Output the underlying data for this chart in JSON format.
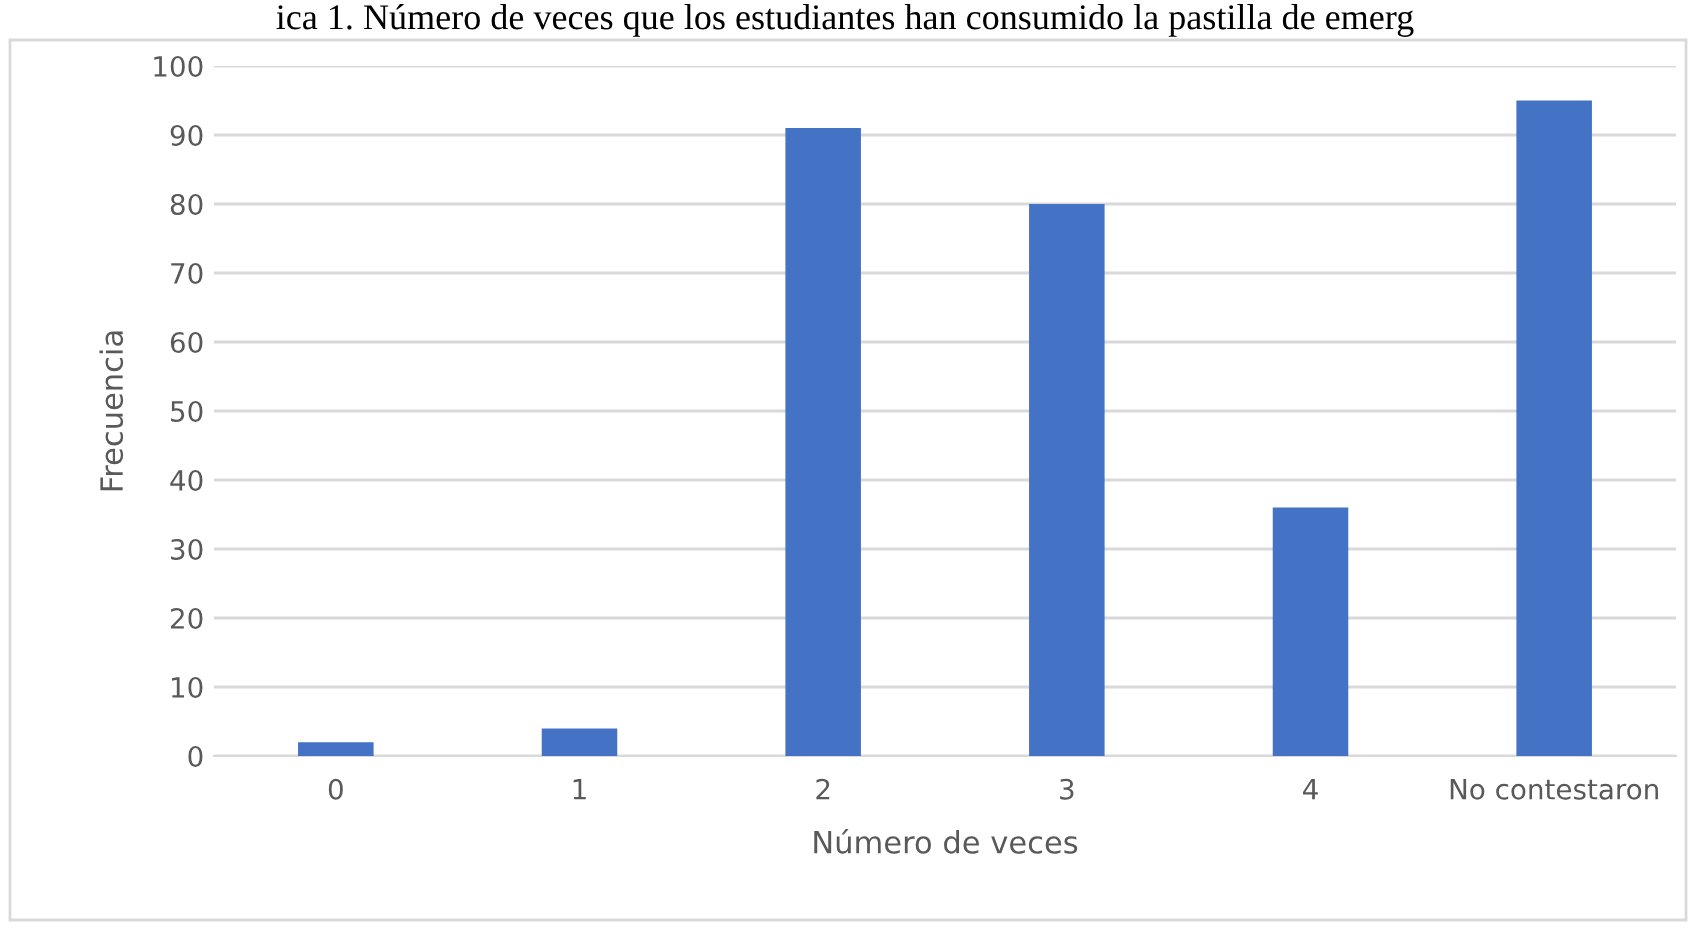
{
  "chart_data": {
    "type": "bar",
    "title": "ica 1. Número de veces que los estudiantes han consumido la pastilla de emerg",
    "xlabel": "Número de veces",
    "ylabel": "Frecuencia",
    "categories": [
      "0",
      "1",
      "2",
      "3",
      "4",
      "No contestaron"
    ],
    "values": [
      2,
      4,
      91,
      80,
      36,
      95
    ],
    "color": "#4472c4",
    "ylim": [
      0,
      100
    ],
    "yticks": [
      0,
      10,
      20,
      30,
      40,
      50,
      60,
      70,
      80,
      90,
      100
    ],
    "grid": "y"
  }
}
